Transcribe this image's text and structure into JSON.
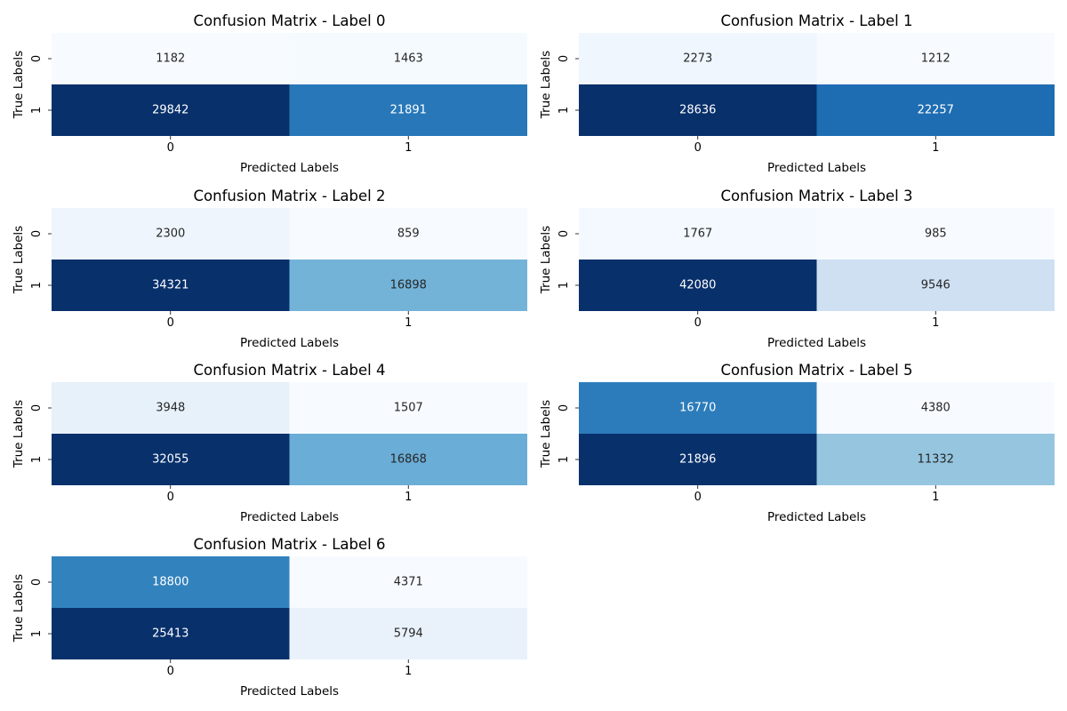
{
  "chart_data": [
    {
      "type": "heatmap",
      "title": "Confusion Matrix - Label 0",
      "xlabel": "Predicted Labels",
      "ylabel": "True Labels",
      "x_ticks": [
        "0",
        "1"
      ],
      "y_ticks": [
        "0",
        "1"
      ],
      "values": [
        [
          1182,
          1463
        ],
        [
          29842,
          21891
        ]
      ],
      "colormap": "Blues",
      "colorbar": false
    },
    {
      "type": "heatmap",
      "title": "Confusion Matrix - Label 1",
      "xlabel": "Predicted Labels",
      "ylabel": "True Labels",
      "x_ticks": [
        "0",
        "1"
      ],
      "y_ticks": [
        "0",
        "1"
      ],
      "values": [
        [
          2273,
          1212
        ],
        [
          28636,
          22257
        ]
      ],
      "colormap": "Blues",
      "colorbar": false
    },
    {
      "type": "heatmap",
      "title": "Confusion Matrix - Label 2",
      "xlabel": "Predicted Labels",
      "ylabel": "True Labels",
      "x_ticks": [
        "0",
        "1"
      ],
      "y_ticks": [
        "0",
        "1"
      ],
      "values": [
        [
          2300,
          859
        ],
        [
          34321,
          16898
        ]
      ],
      "colormap": "Blues",
      "colorbar": false
    },
    {
      "type": "heatmap",
      "title": "Confusion Matrix - Label 3",
      "xlabel": "Predicted Labels",
      "ylabel": "True Labels",
      "x_ticks": [
        "0",
        "1"
      ],
      "y_ticks": [
        "0",
        "1"
      ],
      "values": [
        [
          1767,
          985
        ],
        [
          42080,
          9546
        ]
      ],
      "colormap": "Blues",
      "colorbar": false
    },
    {
      "type": "heatmap",
      "title": "Confusion Matrix - Label 4",
      "xlabel": "Predicted Labels",
      "ylabel": "True Labels",
      "x_ticks": [
        "0",
        "1"
      ],
      "y_ticks": [
        "0",
        "1"
      ],
      "values": [
        [
          3948,
          1507
        ],
        [
          32055,
          16868
        ]
      ],
      "colormap": "Blues",
      "colorbar": false
    },
    {
      "type": "heatmap",
      "title": "Confusion Matrix - Label 5",
      "xlabel": "Predicted Labels",
      "ylabel": "True Labels",
      "x_ticks": [
        "0",
        "1"
      ],
      "y_ticks": [
        "0",
        "1"
      ],
      "values": [
        [
          16770,
          4380
        ],
        [
          21896,
          11332
        ]
      ],
      "colormap": "Blues",
      "colorbar": false
    },
    {
      "type": "heatmap",
      "title": "Confusion Matrix - Label 6",
      "xlabel": "Predicted Labels",
      "ylabel": "True Labels",
      "x_ticks": [
        "0",
        "1"
      ],
      "y_ticks": [
        "0",
        "1"
      ],
      "values": [
        [
          18800,
          4371
        ],
        [
          25413,
          5794
        ]
      ],
      "colormap": "Blues",
      "colorbar": false
    }
  ]
}
